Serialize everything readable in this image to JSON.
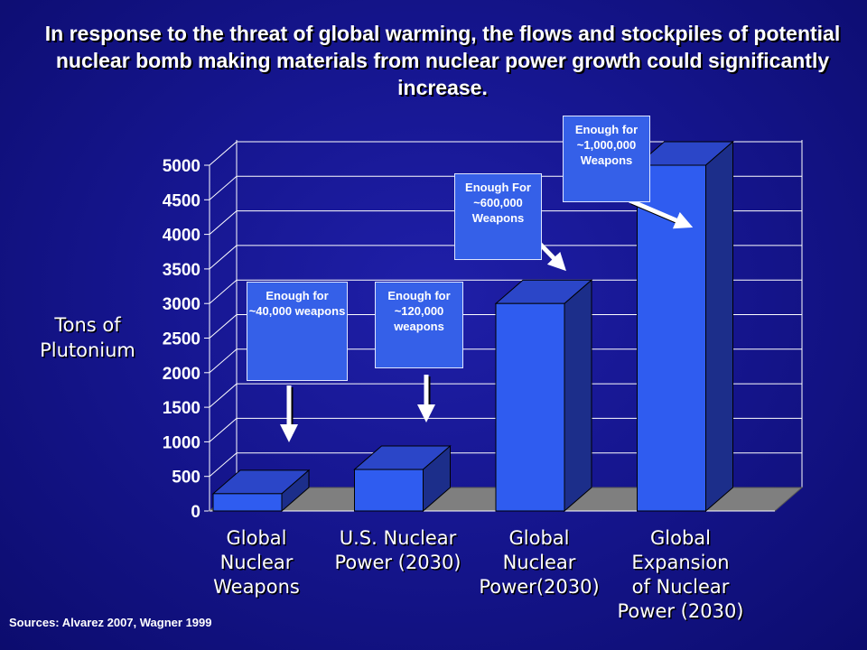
{
  "title": "In response to the threat of global warming, the flows and stockpiles of potential nuclear bomb making materials from nuclear power growth could significantly increase.",
  "sources": "Sources: Alvarez 2007, Wagner 1999",
  "colors": {
    "background": "#161690",
    "bar_front": "#2f5cf0",
    "bar_top": "#2b46c8",
    "bar_side": "#1c2e8a",
    "floor": "#7f7f7f",
    "annotation_box": "#3560e8"
  },
  "annotations": [
    {
      "text": "Enough for ~40,000 weapons",
      "target": "Global Nuclear Weapons",
      "arrow": "down"
    },
    {
      "text": "Enough for ~120,000 weapons",
      "target": "U.S. Nuclear Power (2030)",
      "arrow": "down"
    },
    {
      "text": "Enough For ~600,000 Weapons",
      "target": "Global Nuclear Power(2030)",
      "arrow": "diagonal"
    },
    {
      "text": "Enough for ~1,000,000 Weapons",
      "target": "Global Expansion of Nuclear Power (2030)",
      "arrow": "diagonal"
    }
  ],
  "chart_data": {
    "type": "bar",
    "title": "In response to the threat of global warming, the flows and stockpiles of potential nuclear bomb making materials from nuclear power growth could significantly increase.",
    "ylabel": "Tons of Plutonium",
    "xlabel": "",
    "ylim": [
      0,
      5000
    ],
    "yticks": [
      0,
      500,
      1000,
      1500,
      2000,
      2500,
      3000,
      3500,
      4000,
      4500,
      5000
    ],
    "grid": "horizontal",
    "style": "3d",
    "categories": [
      "Global Nuclear Weapons",
      "U.S. Nuclear Power (2030)",
      "Global Nuclear Power(2030)",
      "Global Expansion of Nuclear Power (2030)"
    ],
    "category_lines": [
      [
        "Global",
        "Nuclear",
        "Weapons"
      ],
      [
        "U.S. Nuclear",
        "Power (2030)"
      ],
      [
        "Global",
        "Nuclear",
        "Power(2030)"
      ],
      [
        "Global",
        "Expansion",
        "of Nuclear",
        "Power (2030)"
      ]
    ],
    "values": [
      250,
      600,
      3000,
      5000
    ]
  }
}
